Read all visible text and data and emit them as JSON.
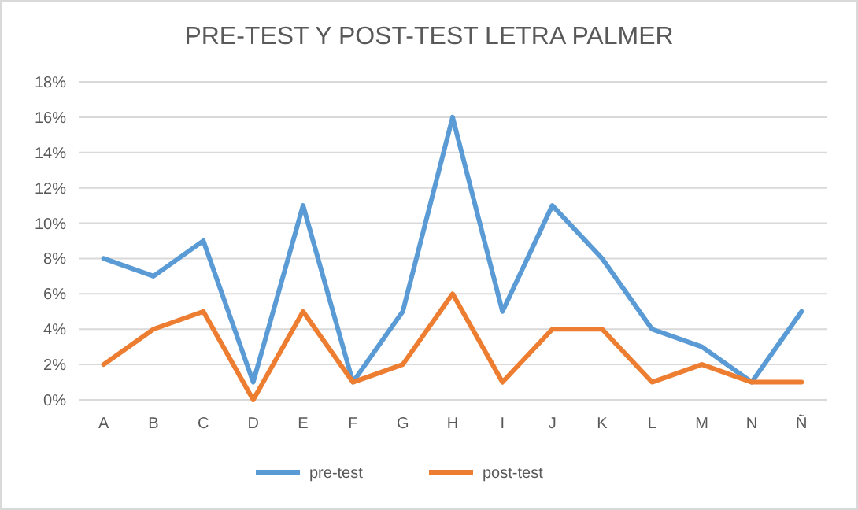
{
  "chart_data": {
    "type": "line",
    "title": "PRE-TEST Y POST-TEST LETRA PALMER",
    "categories": [
      "A",
      "B",
      "C",
      "D",
      "E",
      "F",
      "G",
      "H",
      "I",
      "J",
      "K",
      "L",
      "M",
      "N",
      "Ñ"
    ],
    "series": [
      {
        "name": "pre-test",
        "color": "#5b9bd5",
        "values": [
          8,
          7,
          9,
          1,
          11,
          1,
          5,
          16,
          5,
          11,
          8,
          4,
          3,
          1,
          5
        ]
      },
      {
        "name": "post-test",
        "color": "#ed7d31",
        "values": [
          2,
          4,
          5,
          0,
          5,
          1,
          2,
          6,
          1,
          4,
          4,
          1,
          2,
          1,
          1
        ]
      }
    ],
    "ylim": [
      0,
      18
    ],
    "yticks": [
      {
        "value": 0,
        "label": "0%"
      },
      {
        "value": 2,
        "label": "2%"
      },
      {
        "value": 4,
        "label": "4%"
      },
      {
        "value": 6,
        "label": "6%"
      },
      {
        "value": 8,
        "label": "8%"
      },
      {
        "value": 10,
        "label": "10%"
      },
      {
        "value": 12,
        "label": "12%"
      },
      {
        "value": 14,
        "label": "14%"
      },
      {
        "value": 16,
        "label": "16%"
      },
      {
        "value": 18,
        "label": "18%"
      }
    ],
    "grid": "y",
    "legend": "bottom",
    "marker": "none",
    "line_style": "solid"
  }
}
